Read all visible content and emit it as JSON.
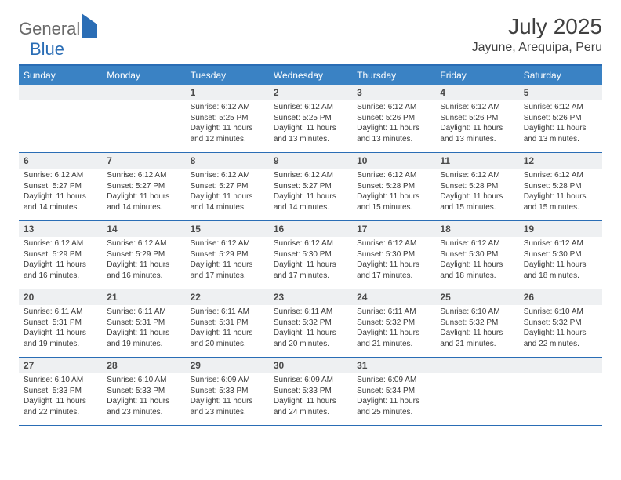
{
  "brand": {
    "part1": "General",
    "part2": "Blue"
  },
  "title": "July 2025",
  "location": "Jayune, Arequipa, Peru",
  "colors": {
    "header_bar": "#3a82c4",
    "border": "#2a6db5",
    "daynum_bg": "#eef0f2",
    "text": "#3a3a3a",
    "title_text": "#404040",
    "logo_gray": "#6a6a6a",
    "logo_blue": "#2a6db5",
    "background": "#ffffff"
  },
  "typography": {
    "title_fontsize": 28,
    "location_fontsize": 16,
    "weekday_fontsize": 12,
    "daynum_fontsize": 12,
    "body_fontsize": 10
  },
  "weekdays": [
    "Sunday",
    "Monday",
    "Tuesday",
    "Wednesday",
    "Thursday",
    "Friday",
    "Saturday"
  ],
  "weeks": [
    [
      {
        "day": "",
        "sunrise": "",
        "sunset": "",
        "daylight1": "",
        "daylight2": ""
      },
      {
        "day": "",
        "sunrise": "",
        "sunset": "",
        "daylight1": "",
        "daylight2": ""
      },
      {
        "day": "1",
        "sunrise": "Sunrise: 6:12 AM",
        "sunset": "Sunset: 5:25 PM",
        "daylight1": "Daylight: 11 hours",
        "daylight2": "and 12 minutes."
      },
      {
        "day": "2",
        "sunrise": "Sunrise: 6:12 AM",
        "sunset": "Sunset: 5:25 PM",
        "daylight1": "Daylight: 11 hours",
        "daylight2": "and 13 minutes."
      },
      {
        "day": "3",
        "sunrise": "Sunrise: 6:12 AM",
        "sunset": "Sunset: 5:26 PM",
        "daylight1": "Daylight: 11 hours",
        "daylight2": "and 13 minutes."
      },
      {
        "day": "4",
        "sunrise": "Sunrise: 6:12 AM",
        "sunset": "Sunset: 5:26 PM",
        "daylight1": "Daylight: 11 hours",
        "daylight2": "and 13 minutes."
      },
      {
        "day": "5",
        "sunrise": "Sunrise: 6:12 AM",
        "sunset": "Sunset: 5:26 PM",
        "daylight1": "Daylight: 11 hours",
        "daylight2": "and 13 minutes."
      }
    ],
    [
      {
        "day": "6",
        "sunrise": "Sunrise: 6:12 AM",
        "sunset": "Sunset: 5:27 PM",
        "daylight1": "Daylight: 11 hours",
        "daylight2": "and 14 minutes."
      },
      {
        "day": "7",
        "sunrise": "Sunrise: 6:12 AM",
        "sunset": "Sunset: 5:27 PM",
        "daylight1": "Daylight: 11 hours",
        "daylight2": "and 14 minutes."
      },
      {
        "day": "8",
        "sunrise": "Sunrise: 6:12 AM",
        "sunset": "Sunset: 5:27 PM",
        "daylight1": "Daylight: 11 hours",
        "daylight2": "and 14 minutes."
      },
      {
        "day": "9",
        "sunrise": "Sunrise: 6:12 AM",
        "sunset": "Sunset: 5:27 PM",
        "daylight1": "Daylight: 11 hours",
        "daylight2": "and 14 minutes."
      },
      {
        "day": "10",
        "sunrise": "Sunrise: 6:12 AM",
        "sunset": "Sunset: 5:28 PM",
        "daylight1": "Daylight: 11 hours",
        "daylight2": "and 15 minutes."
      },
      {
        "day": "11",
        "sunrise": "Sunrise: 6:12 AM",
        "sunset": "Sunset: 5:28 PM",
        "daylight1": "Daylight: 11 hours",
        "daylight2": "and 15 minutes."
      },
      {
        "day": "12",
        "sunrise": "Sunrise: 6:12 AM",
        "sunset": "Sunset: 5:28 PM",
        "daylight1": "Daylight: 11 hours",
        "daylight2": "and 15 minutes."
      }
    ],
    [
      {
        "day": "13",
        "sunrise": "Sunrise: 6:12 AM",
        "sunset": "Sunset: 5:29 PM",
        "daylight1": "Daylight: 11 hours",
        "daylight2": "and 16 minutes."
      },
      {
        "day": "14",
        "sunrise": "Sunrise: 6:12 AM",
        "sunset": "Sunset: 5:29 PM",
        "daylight1": "Daylight: 11 hours",
        "daylight2": "and 16 minutes."
      },
      {
        "day": "15",
        "sunrise": "Sunrise: 6:12 AM",
        "sunset": "Sunset: 5:29 PM",
        "daylight1": "Daylight: 11 hours",
        "daylight2": "and 17 minutes."
      },
      {
        "day": "16",
        "sunrise": "Sunrise: 6:12 AM",
        "sunset": "Sunset: 5:30 PM",
        "daylight1": "Daylight: 11 hours",
        "daylight2": "and 17 minutes."
      },
      {
        "day": "17",
        "sunrise": "Sunrise: 6:12 AM",
        "sunset": "Sunset: 5:30 PM",
        "daylight1": "Daylight: 11 hours",
        "daylight2": "and 17 minutes."
      },
      {
        "day": "18",
        "sunrise": "Sunrise: 6:12 AM",
        "sunset": "Sunset: 5:30 PM",
        "daylight1": "Daylight: 11 hours",
        "daylight2": "and 18 minutes."
      },
      {
        "day": "19",
        "sunrise": "Sunrise: 6:12 AM",
        "sunset": "Sunset: 5:30 PM",
        "daylight1": "Daylight: 11 hours",
        "daylight2": "and 18 minutes."
      }
    ],
    [
      {
        "day": "20",
        "sunrise": "Sunrise: 6:11 AM",
        "sunset": "Sunset: 5:31 PM",
        "daylight1": "Daylight: 11 hours",
        "daylight2": "and 19 minutes."
      },
      {
        "day": "21",
        "sunrise": "Sunrise: 6:11 AM",
        "sunset": "Sunset: 5:31 PM",
        "daylight1": "Daylight: 11 hours",
        "daylight2": "and 19 minutes."
      },
      {
        "day": "22",
        "sunrise": "Sunrise: 6:11 AM",
        "sunset": "Sunset: 5:31 PM",
        "daylight1": "Daylight: 11 hours",
        "daylight2": "and 20 minutes."
      },
      {
        "day": "23",
        "sunrise": "Sunrise: 6:11 AM",
        "sunset": "Sunset: 5:32 PM",
        "daylight1": "Daylight: 11 hours",
        "daylight2": "and 20 minutes."
      },
      {
        "day": "24",
        "sunrise": "Sunrise: 6:11 AM",
        "sunset": "Sunset: 5:32 PM",
        "daylight1": "Daylight: 11 hours",
        "daylight2": "and 21 minutes."
      },
      {
        "day": "25",
        "sunrise": "Sunrise: 6:10 AM",
        "sunset": "Sunset: 5:32 PM",
        "daylight1": "Daylight: 11 hours",
        "daylight2": "and 21 minutes."
      },
      {
        "day": "26",
        "sunrise": "Sunrise: 6:10 AM",
        "sunset": "Sunset: 5:32 PM",
        "daylight1": "Daylight: 11 hours",
        "daylight2": "and 22 minutes."
      }
    ],
    [
      {
        "day": "27",
        "sunrise": "Sunrise: 6:10 AM",
        "sunset": "Sunset: 5:33 PM",
        "daylight1": "Daylight: 11 hours",
        "daylight2": "and 22 minutes."
      },
      {
        "day": "28",
        "sunrise": "Sunrise: 6:10 AM",
        "sunset": "Sunset: 5:33 PM",
        "daylight1": "Daylight: 11 hours",
        "daylight2": "and 23 minutes."
      },
      {
        "day": "29",
        "sunrise": "Sunrise: 6:09 AM",
        "sunset": "Sunset: 5:33 PM",
        "daylight1": "Daylight: 11 hours",
        "daylight2": "and 23 minutes."
      },
      {
        "day": "30",
        "sunrise": "Sunrise: 6:09 AM",
        "sunset": "Sunset: 5:33 PM",
        "daylight1": "Daylight: 11 hours",
        "daylight2": "and 24 minutes."
      },
      {
        "day": "31",
        "sunrise": "Sunrise: 6:09 AM",
        "sunset": "Sunset: 5:34 PM",
        "daylight1": "Daylight: 11 hours",
        "daylight2": "and 25 minutes."
      },
      {
        "day": "",
        "sunrise": "",
        "sunset": "",
        "daylight1": "",
        "daylight2": ""
      },
      {
        "day": "",
        "sunrise": "",
        "sunset": "",
        "daylight1": "",
        "daylight2": ""
      }
    ]
  ]
}
